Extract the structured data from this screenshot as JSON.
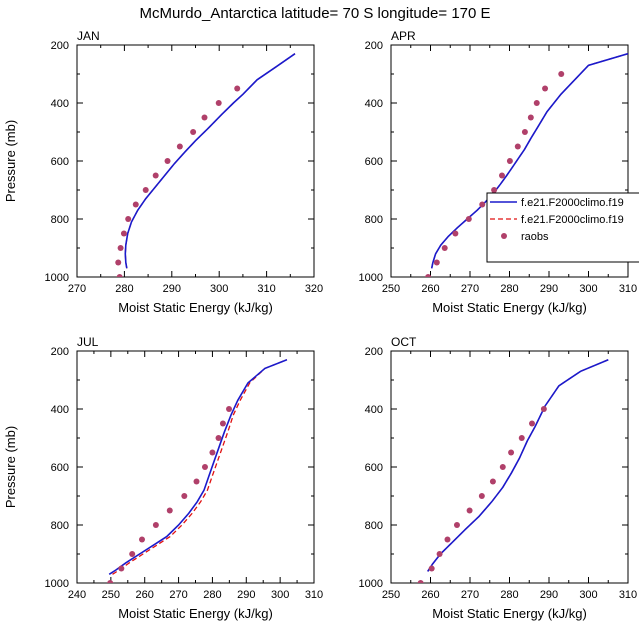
{
  "title": "McMurdo_Antarctica  latitude= 70 S longitude= 170 E",
  "colors": {
    "series1": "#1a1acc",
    "series2": "#e01010",
    "obs": "#b0406a",
    "axis": "#000000"
  },
  "legend": {
    "entries": [
      "f.e21.F2000climo.f19",
      "f.e21.F2000climo.f19",
      "raobs"
    ]
  },
  "chart_data": [
    {
      "type": "line",
      "panel": "JAN",
      "xlabel": "Moist Static Energy (kJ/kg)",
      "ylabel": "Pressure (mb)",
      "xlim": [
        270,
        320
      ],
      "ylim": [
        1000,
        200
      ],
      "xticks": [
        270,
        280,
        290,
        300,
        310,
        320
      ],
      "yticks": [
        200,
        400,
        600,
        800,
        1000
      ],
      "series": [
        {
          "x": [
            280.5,
            280.3,
            280.2,
            280.3,
            280.7,
            281.5,
            282.8,
            284.5,
            286.5,
            288.5,
            290.5,
            292.7,
            295.0,
            297.5,
            300.5,
            303.0,
            305.0,
            308.0,
            312.0,
            316.0
          ],
          "y": [
            970,
            950,
            920,
            890,
            850,
            810,
            770,
            730,
            690,
            650,
            610,
            570,
            530,
            490,
            440,
            400,
            370,
            320,
            275,
            230
          ]
        },
        {
          "x": [
            280.5,
            280.3,
            280.2,
            280.3,
            280.7,
            281.5,
            282.8,
            284.5,
            286.5,
            288.5,
            290.5,
            292.7,
            295.0,
            297.5,
            300.5,
            303.0,
            305.0,
            308.0,
            312.0,
            316.0
          ],
          "y": [
            970,
            950,
            920,
            890,
            850,
            810,
            770,
            730,
            690,
            650,
            610,
            570,
            530,
            490,
            440,
            400,
            370,
            320,
            275,
            230
          ]
        }
      ],
      "obs": {
        "x": [
          279.0,
          278.7,
          279.2,
          279.9,
          280.8,
          282.4,
          284.5,
          286.6,
          289.1,
          291.7,
          294.5,
          296.9,
          299.9,
          303.8
        ],
        "y": [
          1000,
          950,
          900,
          850,
          800,
          750,
          700,
          650,
          600,
          550,
          500,
          450,
          400,
          350
        ]
      }
    },
    {
      "type": "line",
      "panel": "APR",
      "xlabel": "Moist Static Energy (kJ/kg)",
      "ylabel": "",
      "xlim": [
        250,
        310
      ],
      "ylim": [
        1000,
        200
      ],
      "xticks": [
        250,
        260,
        270,
        280,
        290,
        300,
        310
      ],
      "yticks": [
        200,
        400,
        600,
        800,
        1000
      ],
      "series": [
        {
          "x": [
            260.3,
            260.6,
            261.3,
            262.6,
            264.5,
            266.8,
            269.3,
            271.8,
            274.0,
            276.0,
            277.7,
            279.3,
            280.8,
            282.3,
            283.8,
            285.5,
            287.3,
            289.5,
            293.0,
            300.0,
            310.0
          ],
          "y": [
            970,
            950,
            920,
            890,
            860,
            830,
            800,
            770,
            740,
            710,
            680,
            650,
            620,
            590,
            560,
            520,
            480,
            430,
            370,
            270,
            230
          ]
        },
        {
          "x": [
            260.3,
            260.6,
            261.3,
            262.6,
            264.5,
            266.8,
            269.3,
            271.8,
            274.0,
            276.0,
            277.7,
            279.3,
            280.8,
            282.3,
            283.8,
            285.5,
            287.3,
            289.5,
            293.0,
            300.0,
            310.0
          ],
          "y": [
            970,
            950,
            920,
            890,
            860,
            830,
            800,
            770,
            740,
            710,
            680,
            650,
            620,
            590,
            560,
            520,
            480,
            430,
            370,
            270,
            230
          ]
        }
      ],
      "obs": {
        "x": [
          259.4,
          261.6,
          263.6,
          266.3,
          269.7,
          273.1,
          276.1,
          278.1,
          280.1,
          282.1,
          283.9,
          285.4,
          286.9,
          289.0,
          293.1
        ],
        "y": [
          1000,
          950,
          900,
          850,
          800,
          750,
          700,
          650,
          600,
          550,
          500,
          450,
          400,
          350,
          300
        ]
      }
    },
    {
      "type": "line",
      "panel": "JUL",
      "xlabel": "Moist Static Energy (kJ/kg)",
      "ylabel": "Pressure (mb)",
      "xlim": [
        240,
        310
      ],
      "ylim": [
        1000,
        200
      ],
      "xticks": [
        240,
        250,
        260,
        270,
        280,
        290,
        300,
        310
      ],
      "yticks": [
        200,
        400,
        600,
        800,
        1000
      ],
      "series": [
        {
          "x": [
            249.5,
            251.5,
            254.5,
            258.5,
            262.5,
            266.5,
            270.0,
            273.0,
            275.5,
            277.5,
            279.0,
            280.5,
            282.0,
            283.5,
            285.5,
            287.5,
            290.5,
            295.5,
            302.0
          ],
          "y": [
            970,
            955,
            930,
            900,
            870,
            840,
            800,
            760,
            720,
            680,
            630,
            580,
            530,
            480,
            420,
            370,
            310,
            260,
            230
          ]
        },
        {
          "x": [
            250.5,
            252.5,
            255.5,
            259.5,
            263.5,
            267.5,
            271.0,
            274.0,
            276.5,
            278.5,
            280.0,
            281.5,
            283.0,
            284.5,
            286.2,
            288.2,
            291.0,
            295.5,
            302.0
          ],
          "y": [
            970,
            955,
            930,
            900,
            870,
            840,
            800,
            760,
            720,
            680,
            630,
            580,
            530,
            480,
            420,
            370,
            310,
            260,
            230
          ]
        }
      ],
      "obs": {
        "x": [
          249.8,
          253.1,
          256.3,
          259.2,
          263.3,
          267.4,
          271.7,
          275.3,
          277.8,
          280.0,
          281.8,
          283.1,
          284.9
        ],
        "y": [
          1000,
          950,
          900,
          850,
          800,
          750,
          700,
          650,
          600,
          550,
          500,
          450,
          400
        ]
      }
    },
    {
      "type": "line",
      "panel": "OCT",
      "xlabel": "Moist Static Energy (kJ/kg)",
      "ylabel": "",
      "xlim": [
        250,
        310
      ],
      "ylim": [
        1000,
        200
      ],
      "xticks": [
        250,
        260,
        270,
        280,
        290,
        300,
        310
      ],
      "yticks": [
        200,
        400,
        600,
        800,
        1000
      ],
      "series": [
        {
          "x": [
            259.3,
            260.5,
            262.5,
            265.5,
            268.8,
            272.3,
            275.5,
            278.3,
            280.5,
            282.5,
            284.5,
            286.5,
            289.0,
            292.5,
            298.0,
            305.0
          ],
          "y": [
            960,
            935,
            900,
            860,
            815,
            770,
            720,
            670,
            620,
            570,
            510,
            460,
            390,
            320,
            270,
            230
          ]
        },
        {
          "x": [
            259.3,
            260.5,
            262.5,
            265.5,
            268.8,
            272.3,
            275.5,
            278.3,
            280.5,
            282.5,
            284.5,
            286.5,
            289.0,
            292.5,
            298.0,
            305.0
          ],
          "y": [
            960,
            935,
            900,
            860,
            815,
            770,
            720,
            670,
            620,
            570,
            510,
            460,
            390,
            320,
            270,
            230
          ]
        }
      ],
      "obs": {
        "x": [
          257.5,
          260.3,
          262.3,
          264.3,
          266.7,
          269.9,
          273.0,
          275.8,
          278.3,
          280.4,
          283.1,
          285.7,
          288.7
        ],
        "y": [
          1000,
          950,
          900,
          850,
          800,
          750,
          700,
          650,
          600,
          550,
          500,
          450,
          400
        ]
      }
    }
  ]
}
